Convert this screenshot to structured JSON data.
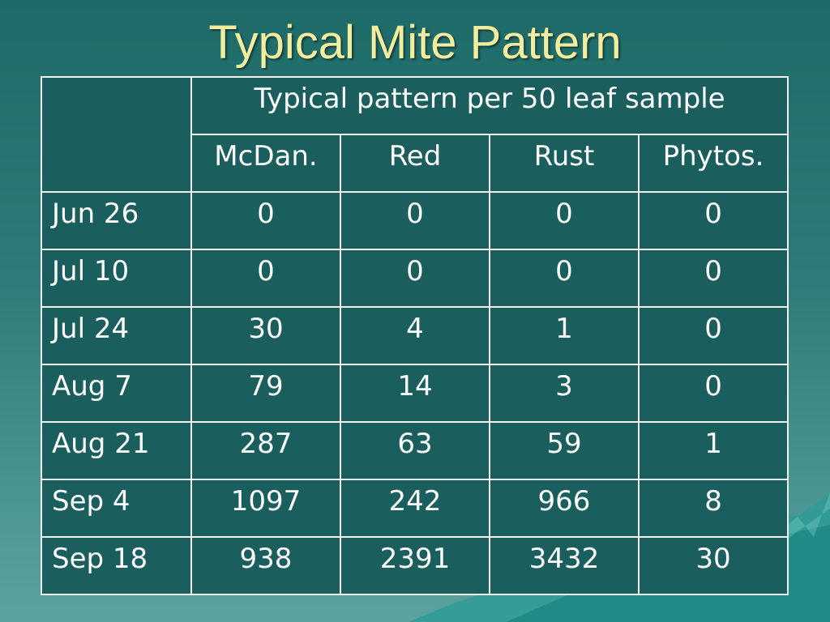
{
  "slide": {
    "title": "Typical Mite Pattern"
  },
  "table": {
    "group_header": "Typical pattern per 50 leaf sample",
    "columns": [
      "McDan.",
      "Red",
      "Rust",
      "Phytos."
    ],
    "rows": [
      {
        "label": "Jun 26",
        "values": [
          "0",
          "0",
          "0",
          "0"
        ]
      },
      {
        "label": "Jul 10",
        "values": [
          "0",
          "0",
          "0",
          "0"
        ]
      },
      {
        "label": "Jul 24",
        "values": [
          "30",
          "4",
          "1",
          "0"
        ]
      },
      {
        "label": "Aug 7",
        "values": [
          "79",
          "14",
          "3",
          "0"
        ]
      },
      {
        "label": "Aug 21",
        "values": [
          "287",
          "63",
          "59",
          "1"
        ]
      },
      {
        "label": "Sep 4",
        "values": [
          "1097",
          "242",
          "966",
          "8"
        ]
      },
      {
        "label": "Sep 18",
        "values": [
          "938",
          "2391",
          "3432",
          "30"
        ]
      }
    ]
  },
  "colors": {
    "title": "#f3ee9f",
    "table_bg": "#1a5e5e",
    "grid_lines": "#f2f2f2",
    "cell_text": "#ffffff"
  }
}
